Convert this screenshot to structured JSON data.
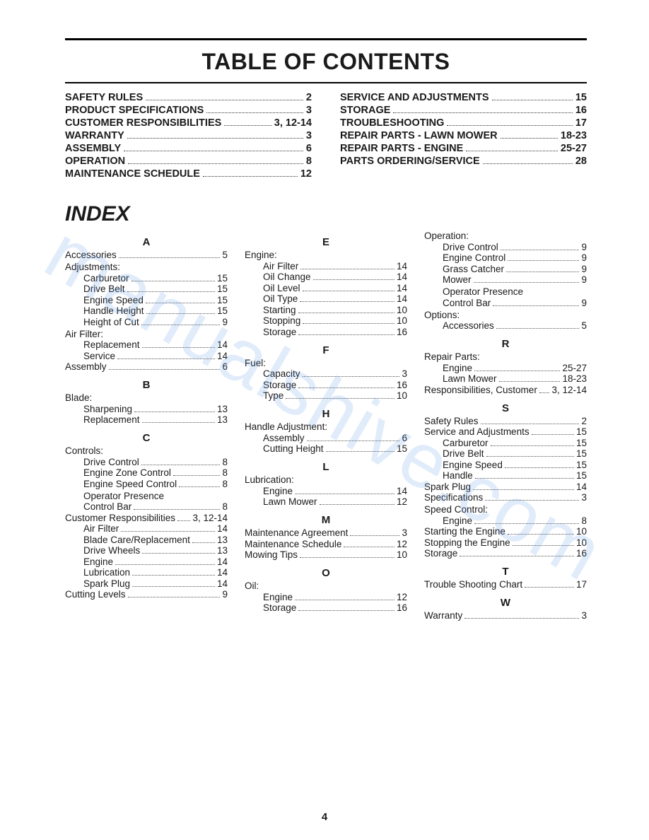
{
  "title": "TABLE OF CONTENTS",
  "index_heading": "INDEX",
  "page_number": "4",
  "watermark": "manualshive.com",
  "toc": {
    "left": [
      {
        "label": "SAFETY RULES",
        "page": "2"
      },
      {
        "label": "PRODUCT SPECIFICATIONS",
        "page": "3"
      },
      {
        "label": "CUSTOMER RESPONSIBILITIES",
        "page": "3, 12-14"
      },
      {
        "label": "WARRANTY",
        "page": "3"
      },
      {
        "label": "ASSEMBLY",
        "page": "6"
      },
      {
        "label": "OPERATION",
        "page": "8"
      },
      {
        "label": "MAINTENANCE SCHEDULE",
        "page": "12"
      }
    ],
    "right": [
      {
        "label": "SERVICE AND ADJUSTMENTS",
        "page": "15"
      },
      {
        "label": "STORAGE",
        "page": "16"
      },
      {
        "label": "TROUBLESHOOTING",
        "page": "17"
      },
      {
        "label": "REPAIR PARTS - LAWN MOWER",
        "page": "18-23"
      },
      {
        "label": "REPAIR PARTS - ENGINE",
        "page": "25-27"
      },
      {
        "label": "PARTS ORDERING/SERVICE",
        "page": "28"
      }
    ]
  },
  "index": {
    "col1": [
      {
        "type": "letter",
        "text": "A"
      },
      {
        "type": "entry",
        "label": "Accessories",
        "page": "5"
      },
      {
        "type": "header",
        "label": "Adjustments:"
      },
      {
        "type": "sub",
        "label": "Carburetor",
        "page": "15"
      },
      {
        "type": "sub",
        "label": "Drive Belt",
        "page": "15"
      },
      {
        "type": "sub",
        "label": "Engine Speed",
        "page": "15"
      },
      {
        "type": "sub",
        "label": "Handle Height",
        "page": "15"
      },
      {
        "type": "sub",
        "label": "Height of Cut",
        "page": "9"
      },
      {
        "type": "header",
        "label": "Air Filter:"
      },
      {
        "type": "sub",
        "label": "Replacement",
        "page": "14"
      },
      {
        "type": "sub",
        "label": "Service",
        "page": "14"
      },
      {
        "type": "entry",
        "label": "Assembly",
        "page": "6"
      },
      {
        "type": "letter",
        "text": "B"
      },
      {
        "type": "header",
        "label": "Blade:"
      },
      {
        "type": "sub",
        "label": "Sharpening",
        "page": "13"
      },
      {
        "type": "sub",
        "label": "Replacement",
        "page": "13"
      },
      {
        "type": "letter",
        "text": "C"
      },
      {
        "type": "header",
        "label": "Controls:"
      },
      {
        "type": "sub",
        "label": "Drive Control",
        "page": "8"
      },
      {
        "type": "sub",
        "label": "Engine Zone Control",
        "page": "8"
      },
      {
        "type": "sub",
        "label": "Engine Speed Control",
        "page": "8"
      },
      {
        "type": "subheader",
        "label": "Operator Presence"
      },
      {
        "type": "sub",
        "label": "Control Bar",
        "page": "8"
      },
      {
        "type": "entry",
        "label": "Customer Responsibilities",
        "page": "3, 12-14"
      },
      {
        "type": "sub",
        "label": "Air Filter",
        "page": "14"
      },
      {
        "type": "sub",
        "label": "Blade Care/Replacement",
        "page": "13"
      },
      {
        "type": "sub",
        "label": "Drive Wheels",
        "page": "13"
      },
      {
        "type": "sub",
        "label": "Engine",
        "page": "14"
      },
      {
        "type": "sub",
        "label": "Lubrication",
        "page": "14"
      },
      {
        "type": "sub",
        "label": "Spark Plug",
        "page": "14"
      },
      {
        "type": "entry",
        "label": "Cutting Levels",
        "page": "9"
      }
    ],
    "col2": [
      {
        "type": "letter",
        "text": "E"
      },
      {
        "type": "header",
        "label": "Engine:"
      },
      {
        "type": "sub",
        "label": "Air Filter",
        "page": "14"
      },
      {
        "type": "sub",
        "label": "Oil Change",
        "page": "14"
      },
      {
        "type": "sub",
        "label": "Oil Level",
        "page": "14"
      },
      {
        "type": "sub",
        "label": "Oil Type",
        "page": "14"
      },
      {
        "type": "sub",
        "label": "Starting",
        "page": "10"
      },
      {
        "type": "sub",
        "label": "Stopping",
        "page": "10"
      },
      {
        "type": "sub",
        "label": "Storage",
        "page": "16"
      },
      {
        "type": "letter",
        "text": "F"
      },
      {
        "type": "header",
        "label": "Fuel:"
      },
      {
        "type": "sub",
        "label": "Capacity",
        "page": "3"
      },
      {
        "type": "sub",
        "label": "Storage",
        "page": "16"
      },
      {
        "type": "sub",
        "label": "Type",
        "page": "10"
      },
      {
        "type": "letter",
        "text": "H"
      },
      {
        "type": "header",
        "label": "Handle Adjustment:"
      },
      {
        "type": "sub",
        "label": "Assembly",
        "page": "6"
      },
      {
        "type": "sub",
        "label": "Cutting Height",
        "page": "15"
      },
      {
        "type": "letter",
        "text": "L"
      },
      {
        "type": "header",
        "label": "Lubrication:"
      },
      {
        "type": "sub",
        "label": "Engine",
        "page": "14"
      },
      {
        "type": "sub",
        "label": "Lawn Mower",
        "page": "12"
      },
      {
        "type": "letter",
        "text": "M"
      },
      {
        "type": "entry",
        "label": "Maintenance Agreement",
        "page": "3"
      },
      {
        "type": "entry",
        "label": "Maintenance Schedule",
        "page": "12"
      },
      {
        "type": "entry",
        "label": "Mowing Tips",
        "page": "10"
      },
      {
        "type": "letter",
        "text": "O"
      },
      {
        "type": "header",
        "label": "Oil:"
      },
      {
        "type": "sub",
        "label": "Engine",
        "page": "12"
      },
      {
        "type": "sub",
        "label": "Storage",
        "page": "16"
      }
    ],
    "col3": [
      {
        "type": "header",
        "label": "Operation:"
      },
      {
        "type": "sub",
        "label": "Drive Control",
        "page": "9"
      },
      {
        "type": "sub",
        "label": "Engine Control",
        "page": "9"
      },
      {
        "type": "sub",
        "label": "Grass Catcher",
        "page": "9"
      },
      {
        "type": "sub",
        "label": "Mower",
        "page": "9"
      },
      {
        "type": "subheader",
        "label": "Operator Presence"
      },
      {
        "type": "sub",
        "label": "Control Bar",
        "page": "9"
      },
      {
        "type": "header",
        "label": "Options:"
      },
      {
        "type": "sub",
        "label": "Accessories",
        "page": "5"
      },
      {
        "type": "letter",
        "text": "R"
      },
      {
        "type": "header",
        "label": "Repair Parts:"
      },
      {
        "type": "sub",
        "label": "Engine",
        "page": "25-27"
      },
      {
        "type": "sub",
        "label": "Lawn Mower",
        "page": "18-23"
      },
      {
        "type": "entry",
        "label": "Responsibilities, Customer",
        "page": "3, 12-14"
      },
      {
        "type": "letter",
        "text": "S"
      },
      {
        "type": "entry",
        "label": "Safety Rules",
        "page": "2"
      },
      {
        "type": "entry",
        "label": "Service and Adjustments",
        "page": "15"
      },
      {
        "type": "sub",
        "label": "Carburetor",
        "page": "15"
      },
      {
        "type": "sub",
        "label": "Drive Belt",
        "page": "15"
      },
      {
        "type": "sub",
        "label": "Engine Speed",
        "page": "15"
      },
      {
        "type": "sub",
        "label": "Handle",
        "page": "15"
      },
      {
        "type": "entry",
        "label": "Spark Plug",
        "page": "14"
      },
      {
        "type": "entry",
        "label": "Specifications",
        "page": "3"
      },
      {
        "type": "header",
        "label": "Speed Control:"
      },
      {
        "type": "sub",
        "label": "Engine",
        "page": "8"
      },
      {
        "type": "entry",
        "label": "Starting the Engine",
        "page": "10"
      },
      {
        "type": "entry",
        "label": "Stopping the Engine",
        "page": "10"
      },
      {
        "type": "entry",
        "label": "Storage",
        "page": "16"
      },
      {
        "type": "letter",
        "text": "T"
      },
      {
        "type": "entry",
        "label": "Trouble Shooting Chart",
        "page": "17"
      },
      {
        "type": "letter",
        "text": "W"
      },
      {
        "type": "entry",
        "label": "Warranty",
        "page": "3"
      }
    ]
  }
}
